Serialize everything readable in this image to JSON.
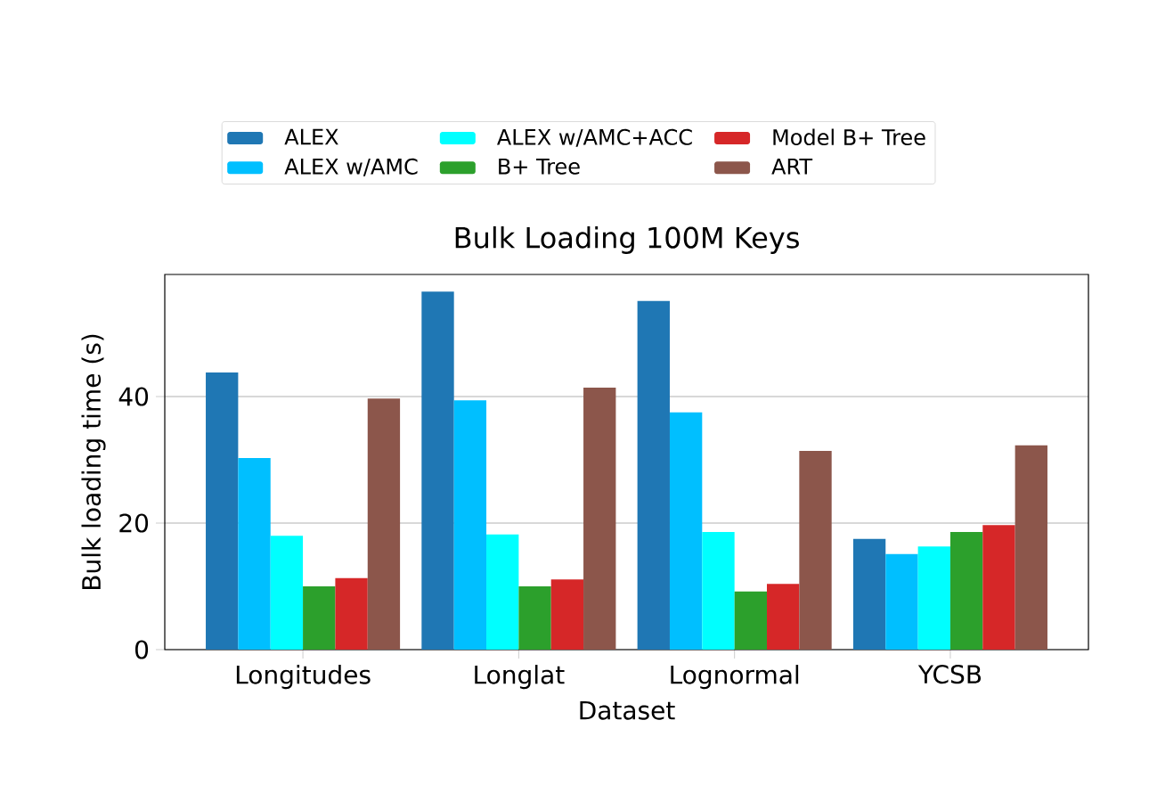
{
  "chart_data": {
    "type": "bar",
    "title": "Bulk Loading 100M Keys",
    "xlabel": "Dataset",
    "ylabel": "Bulk loading time (s)",
    "categories": [
      "Longitudes",
      "Longlat",
      "Lognormal",
      "YCSB"
    ],
    "series": [
      {
        "name": "ALEX",
        "color": "#1f77b4",
        "values": [
          43.8,
          56.6,
          55.1,
          17.5
        ]
      },
      {
        "name": "ALEX w/AMC",
        "color": "#00bfff",
        "values": [
          30.3,
          39.4,
          37.5,
          15.1
        ]
      },
      {
        "name": "ALEX w/AMC+ACC",
        "color": "#00ffff",
        "values": [
          18.0,
          18.2,
          18.6,
          16.3
        ]
      },
      {
        "name": "B+ Tree",
        "color": "#2ca02c",
        "values": [
          10.0,
          10.0,
          9.2,
          18.6
        ]
      },
      {
        "name": "Model B+ Tree",
        "color": "#d62728",
        "values": [
          11.3,
          11.1,
          10.4,
          19.7
        ]
      },
      {
        "name": "ART",
        "color": "#8c564b",
        "values": [
          39.7,
          41.4,
          31.4,
          32.3
        ]
      }
    ],
    "ylim": [
      0,
      59.3
    ],
    "yticks": [
      0,
      20,
      40
    ],
    "grid": "y",
    "legend": "top"
  }
}
